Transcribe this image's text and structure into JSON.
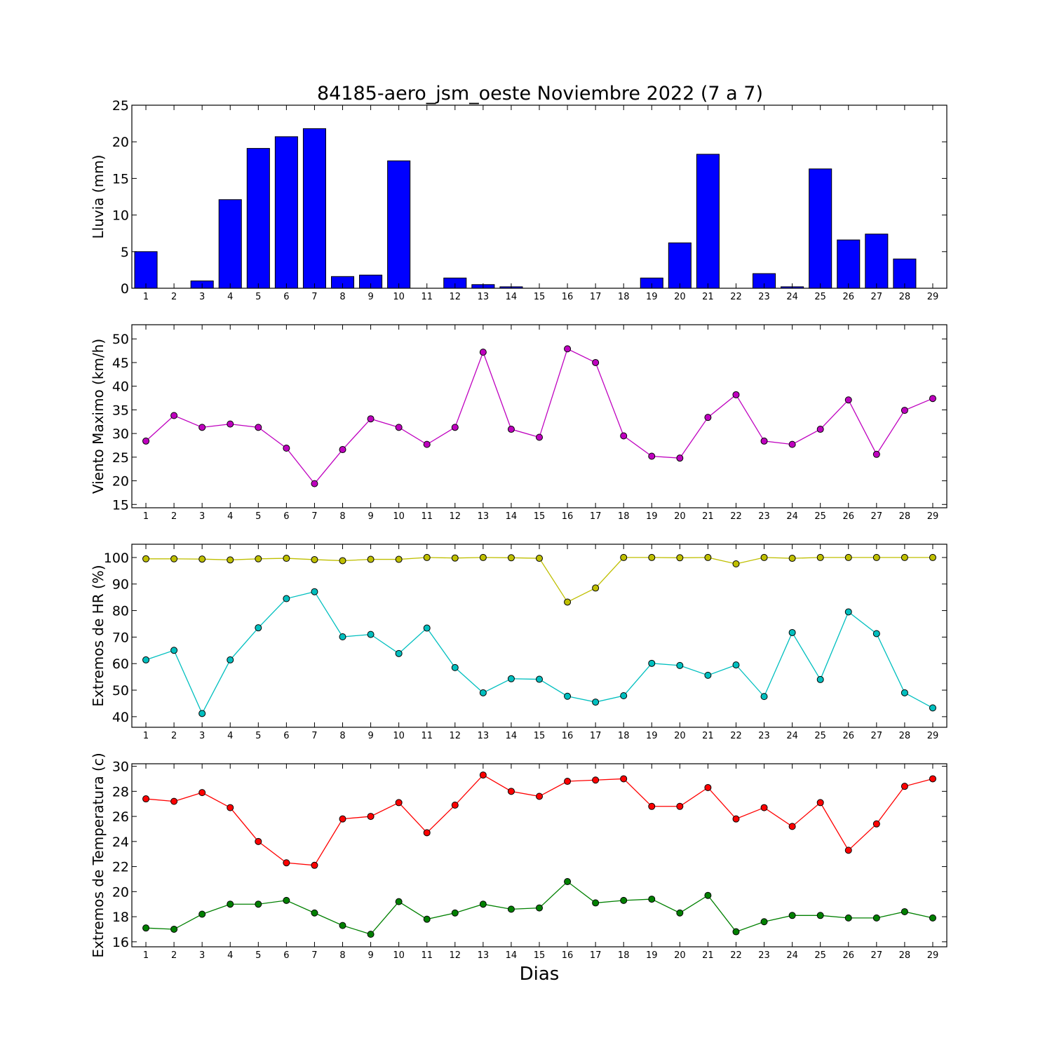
{
  "figure_title": "84185-aero_jsm_oeste Noviembre 2022  (7 a 7)",
  "x_axis_label": "Dias",
  "chart_data": [
    {
      "type": "bar",
      "ylabel": "Lluvia (mm)",
      "categories": [
        "1",
        "2",
        "3",
        "4",
        "5",
        "6",
        "7",
        "8",
        "9",
        "10",
        "11",
        "12",
        "13",
        "14",
        "15",
        "16",
        "17",
        "18",
        "19",
        "20",
        "21",
        "22",
        "23",
        "24",
        "25",
        "26",
        "27",
        "28",
        "29"
      ],
      "ylim": [
        0,
        25
      ],
      "yticks": [
        0,
        5,
        10,
        15,
        20,
        25
      ],
      "series": [
        {
          "color": "#0000ff",
          "values": [
            5.0,
            0,
            1.0,
            12.1,
            19.1,
            20.7,
            21.8,
            1.6,
            1.8,
            17.4,
            0,
            1.4,
            0.5,
            0.2,
            0,
            0,
            0,
            0,
            1.4,
            6.2,
            18.3,
            0,
            2.0,
            0.2,
            16.3,
            6.6,
            7.4,
            4.0,
            0
          ]
        }
      ]
    },
    {
      "type": "line",
      "ylabel": "Viento Maximo (km/h)",
      "categories": [
        "1",
        "2",
        "3",
        "4",
        "5",
        "6",
        "7",
        "8",
        "9",
        "10",
        "11",
        "12",
        "13",
        "14",
        "15",
        "16",
        "17",
        "18",
        "19",
        "20",
        "21",
        "22",
        "23",
        "24",
        "25",
        "26",
        "27",
        "28",
        "29"
      ],
      "ylim": [
        14.3,
        53
      ],
      "yticks": [
        15,
        20,
        25,
        30,
        35,
        40,
        45,
        50
      ],
      "series": [
        {
          "color": "#bf00bf",
          "values": [
            28.4,
            33.8,
            31.3,
            32.0,
            31.3,
            26.9,
            19.4,
            26.6,
            33.1,
            31.3,
            27.7,
            31.3,
            47.2,
            30.9,
            29.2,
            47.9,
            45.0,
            29.5,
            25.2,
            24.8,
            33.4,
            38.2,
            28.4,
            27.7,
            30.9,
            37.1,
            25.6,
            34.9,
            37.4
          ]
        }
      ]
    },
    {
      "type": "line",
      "ylabel": "Extremos de HR (%)",
      "categories": [
        "1",
        "2",
        "3",
        "4",
        "5",
        "6",
        "7",
        "8",
        "9",
        "10",
        "11",
        "12",
        "13",
        "14",
        "15",
        "16",
        "17",
        "18",
        "19",
        "20",
        "21",
        "22",
        "23",
        "24",
        "25",
        "26",
        "27",
        "28",
        "29"
      ],
      "ylim": [
        36,
        105
      ],
      "yticks": [
        40,
        50,
        60,
        70,
        80,
        90,
        100
      ],
      "series": [
        {
          "color": "#bfbf00",
          "values": [
            99.5,
            99.5,
            99.4,
            99.1,
            99.5,
            99.7,
            99.2,
            98.8,
            99.3,
            99.3,
            100,
            99.8,
            100,
            99.9,
            99.7,
            83.2,
            88.5,
            100,
            100,
            99.9,
            100,
            97.6,
            100,
            99.7,
            100,
            100,
            100,
            100,
            100
          ]
        },
        {
          "color": "#00bfbf",
          "values": [
            61.4,
            65.0,
            41.2,
            61.4,
            73.5,
            84.5,
            87.1,
            70.1,
            71.0,
            63.8,
            73.4,
            58.5,
            49.0,
            54.3,
            54.1,
            47.7,
            45.5,
            47.9,
            60.1,
            59.3,
            55.6,
            59.5,
            47.6,
            71.7,
            54.0,
            79.5,
            71.3,
            49.0,
            43.3
          ]
        }
      ]
    },
    {
      "type": "line",
      "ylabel": "Extremos de Temperatura (c)",
      "xlabel": "Dias",
      "categories": [
        "1",
        "2",
        "3",
        "4",
        "5",
        "6",
        "7",
        "8",
        "9",
        "10",
        "11",
        "12",
        "13",
        "14",
        "15",
        "16",
        "17",
        "18",
        "19",
        "20",
        "21",
        "22",
        "23",
        "24",
        "25",
        "26",
        "27",
        "28",
        "29"
      ],
      "ylim": [
        15.6,
        30.2
      ],
      "yticks": [
        16,
        18,
        20,
        22,
        24,
        26,
        28,
        30
      ],
      "series": [
        {
          "color": "#ff0000",
          "values": [
            27.4,
            27.2,
            27.9,
            26.7,
            24.0,
            22.3,
            22.1,
            25.8,
            26.0,
            27.1,
            24.7,
            26.9,
            29.3,
            28.0,
            27.6,
            28.8,
            28.9,
            29.0,
            26.8,
            26.8,
            28.3,
            25.8,
            26.7,
            25.2,
            27.1,
            23.3,
            25.4,
            28.4,
            29.0
          ]
        },
        {
          "color": "#008000",
          "values": [
            17.1,
            17.0,
            18.2,
            19.0,
            19.0,
            19.3,
            18.3,
            17.3,
            16.6,
            19.2,
            17.8,
            18.3,
            19.0,
            18.6,
            18.7,
            20.8,
            19.1,
            19.3,
            19.4,
            18.3,
            19.7,
            16.8,
            17.6,
            18.1,
            18.1,
            17.9,
            17.9,
            18.4,
            17.9
          ]
        }
      ]
    }
  ]
}
